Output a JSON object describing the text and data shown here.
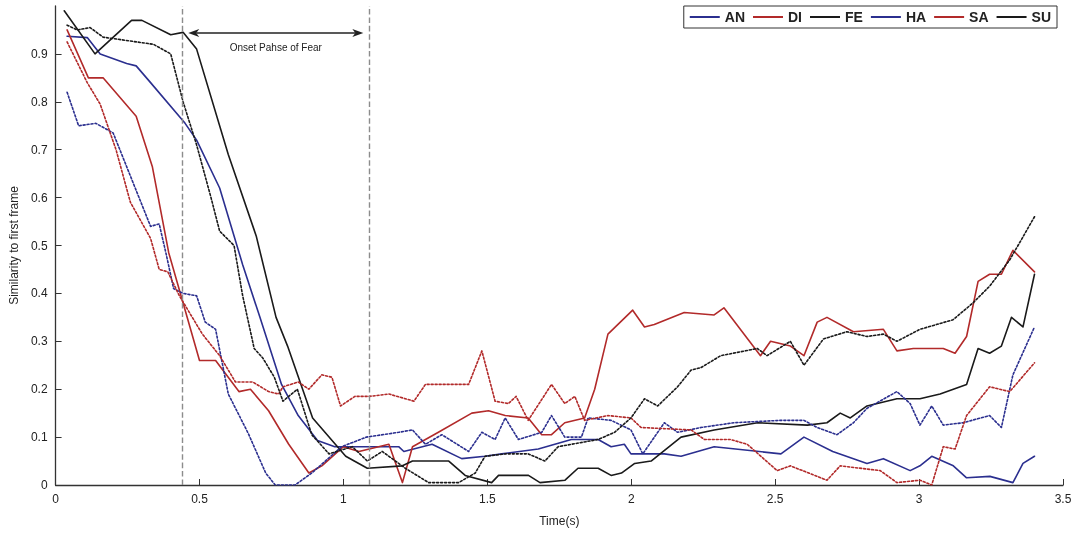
{
  "chart_data": {
    "type": "line",
    "xlabel": "Time(s)",
    "ylabel": "Similarity to first frame",
    "xlim": [
      0,
      3.5
    ],
    "xticks": [
      0,
      0.5,
      1,
      1.5,
      2,
      2.5,
      3,
      3.5
    ],
    "ylim": [
      0,
      1
    ],
    "yticks": [
      0,
      0.1,
      0.2,
      0.3,
      0.4,
      0.5,
      0.6,
      0.7,
      0.8,
      0.9
    ],
    "grid": false,
    "legend": "top right",
    "marker": "none",
    "ref_lines": [
      {
        "axis": "x",
        "value": 0.44,
        "color": "#8c8c8c",
        "line_style": "dashed"
      },
      {
        "axis": "x",
        "value": 1.09,
        "color": "#8c8c8c",
        "line_style": "dashed"
      }
    ],
    "annotations": [
      "Onset Pahse of Fear"
    ],
    "series": [
      {
        "name": "AN",
        "color": "#2b2f8f",
        "line_style": "solid",
        "x": [
          0.04,
          0.11,
          0.155,
          0.247,
          0.28,
          0.33,
          0.45,
          0.49,
          0.57,
          0.65,
          0.71,
          0.785,
          0.843,
          0.91,
          0.97,
          1.031,
          1.192,
          1.21,
          1.308,
          1.411,
          1.492,
          1.55,
          1.677,
          1.792,
          1.885,
          1.93,
          1.976,
          1.999,
          2.115,
          2.173,
          2.288,
          2.52,
          2.6,
          2.7,
          2.819,
          2.876,
          2.969,
          3.003,
          3.044,
          3.119,
          3.165,
          3.246,
          3.326,
          3.361,
          3.401
        ],
        "values": [
          0.937,
          0.934,
          0.9,
          0.88,
          0.875,
          0.84,
          0.755,
          0.72,
          0.62,
          0.46,
          0.35,
          0.21,
          0.145,
          0.093,
          0.08,
          0.08,
          0.08,
          0.07,
          0.085,
          0.055,
          0.06,
          0.065,
          0.075,
          0.095,
          0.095,
          0.08,
          0.085,
          0.065,
          0.065,
          0.06,
          0.08,
          0.065,
          0.1,
          0.07,
          0.045,
          0.055,
          0.03,
          0.04,
          0.06,
          0.04,
          0.015,
          0.018,
          0.005,
          0.045,
          0.06
        ]
      },
      {
        "name": "DI",
        "color": "#b22a2a",
        "line_style": "solid",
        "x": [
          0.04,
          0.114,
          0.165,
          0.28,
          0.336,
          0.393,
          0.443,
          0.5,
          0.556,
          0.637,
          0.677,
          0.74,
          0.81,
          0.88,
          0.925,
          1.0,
          1.054,
          1.158,
          1.205,
          1.24,
          1.33,
          1.446,
          1.504,
          1.562,
          1.642,
          1.689,
          1.723,
          1.769,
          1.838,
          1.873,
          1.919,
          2.005,
          2.046,
          2.08,
          2.184,
          2.288,
          2.322,
          2.449,
          2.484,
          2.553,
          2.6,
          2.646,
          2.68,
          2.772,
          2.876,
          2.923,
          2.98,
          3.084,
          3.125,
          3.165,
          3.205,
          3.245,
          3.286,
          3.326,
          3.401
        ],
        "values": [
          0.95,
          0.85,
          0.85,
          0.77,
          0.665,
          0.485,
          0.38,
          0.26,
          0.26,
          0.195,
          0.2,
          0.155,
          0.085,
          0.025,
          0.04,
          0.08,
          0.07,
          0.085,
          0.005,
          0.08,
          0.11,
          0.15,
          0.155,
          0.145,
          0.14,
          0.105,
          0.105,
          0.13,
          0.14,
          0.2,
          0.315,
          0.365,
          0.33,
          0.335,
          0.36,
          0.355,
          0.37,
          0.27,
          0.3,
          0.29,
          0.27,
          0.34,
          0.35,
          0.32,
          0.325,
          0.28,
          0.285,
          0.285,
          0.275,
          0.31,
          0.425,
          0.44,
          0.44,
          0.49,
          0.445
        ]
      },
      {
        "name": "FE",
        "color": "#1a1a1a",
        "line_style": "solid",
        "x": [
          0.03,
          0.137,
          0.264,
          0.3,
          0.4,
          0.443,
          0.49,
          0.6,
          0.697,
          0.766,
          0.806,
          0.893,
          1.008,
          1.083,
          1.205,
          1.24,
          1.366,
          1.423,
          1.515,
          1.539,
          1.643,
          1.683,
          1.77,
          1.815,
          1.885,
          1.93,
          1.966,
          2.012,
          2.069,
          2.173,
          2.288,
          2.439,
          2.612,
          2.68,
          2.726,
          2.761,
          2.819,
          2.923,
          3.003,
          3.073,
          3.165,
          3.205,
          3.245,
          3.286,
          3.321,
          3.361,
          3.401
        ],
        "values": [
          0.99,
          0.9,
          0.97,
          0.97,
          0.94,
          0.945,
          0.91,
          0.69,
          0.52,
          0.35,
          0.29,
          0.14,
          0.06,
          0.035,
          0.04,
          0.05,
          0.05,
          0.02,
          0.005,
          0.02,
          0.02,
          0.005,
          0.01,
          0.035,
          0.035,
          0.02,
          0.025,
          0.045,
          0.05,
          0.1,
          0.115,
          0.13,
          0.125,
          0.13,
          0.15,
          0.14,
          0.165,
          0.18,
          0.18,
          0.19,
          0.21,
          0.285,
          0.275,
          0.29,
          0.35,
          0.33,
          0.44
        ]
      },
      {
        "name": "HA",
        "color": "#2b2f8f",
        "line_style": "dotted",
        "x": [
          0.04,
          0.08,
          0.14,
          0.2,
          0.28,
          0.33,
          0.36,
          0.385,
          0.41,
          0.443,
          0.49,
          0.52,
          0.556,
          0.6,
          0.67,
          0.73,
          0.763,
          0.832,
          0.89,
          0.994,
          1.08,
          1.192,
          1.24,
          1.285,
          1.342,
          1.435,
          1.481,
          1.527,
          1.562,
          1.608,
          1.689,
          1.723,
          1.769,
          1.827,
          1.85,
          1.93,
          1.999,
          2.04,
          2.115,
          2.161,
          2.242,
          2.357,
          2.519,
          2.6,
          2.646,
          2.715,
          2.772,
          2.819,
          2.923,
          2.969,
          3.003,
          3.044,
          3.084,
          3.153,
          3.245,
          3.286,
          3.326,
          3.401
        ],
        "values": [
          0.82,
          0.75,
          0.755,
          0.735,
          0.615,
          0.54,
          0.545,
          0.48,
          0.41,
          0.4,
          0.395,
          0.34,
          0.325,
          0.19,
          0.107,
          0.025,
          0,
          0,
          0.025,
          0.08,
          0.1,
          0.11,
          0.115,
          0.085,
          0.105,
          0.07,
          0.11,
          0.095,
          0.14,
          0.095,
          0.11,
          0.145,
          0.1,
          0.1,
          0.14,
          0.135,
          0.115,
          0.065,
          0.13,
          0.11,
          0.12,
          0.13,
          0.135,
          0.135,
          0.12,
          0.105,
          0.13,
          0.16,
          0.195,
          0.17,
          0.125,
          0.165,
          0.125,
          0.13,
          0.145,
          0.12,
          0.23,
          0.33
        ]
      },
      {
        "name": "SA",
        "color": "#b22a2a",
        "line_style": "dotted",
        "x": [
          0.04,
          0.11,
          0.155,
          0.21,
          0.26,
          0.33,
          0.36,
          0.39,
          0.43,
          0.51,
          0.57,
          0.625,
          0.685,
          0.74,
          0.775,
          0.79,
          0.843,
          0.88,
          0.925,
          0.96,
          0.99,
          1.04,
          1.09,
          1.158,
          1.245,
          1.285,
          1.435,
          1.481,
          1.527,
          1.573,
          1.6,
          1.642,
          1.723,
          1.769,
          1.804,
          1.838,
          1.919,
          1.999,
          2.034,
          2.208,
          2.254,
          2.345,
          2.403,
          2.507,
          2.553,
          2.68,
          2.726,
          2.865,
          2.923,
          3.003,
          3.044,
          3.084,
          3.125,
          3.165,
          3.245,
          3.315,
          3.401
        ],
        "values": [
          0.925,
          0.84,
          0.795,
          0.7,
          0.59,
          0.515,
          0.45,
          0.445,
          0.395,
          0.315,
          0.27,
          0.215,
          0.215,
          0.195,
          0.19,
          0.205,
          0.215,
          0.2,
          0.23,
          0.225,
          0.165,
          0.185,
          0.185,
          0.19,
          0.175,
          0.21,
          0.21,
          0.28,
          0.175,
          0.17,
          0.185,
          0.135,
          0.21,
          0.17,
          0.185,
          0.135,
          0.145,
          0.14,
          0.12,
          0.115,
          0.095,
          0.095,
          0.085,
          0.03,
          0.04,
          0.01,
          0.04,
          0.03,
          0.005,
          0.01,
          0,
          0.08,
          0.075,
          0.145,
          0.205,
          0.195,
          0.255
        ]
      },
      {
        "name": "SU",
        "color": "#1a1a1a",
        "line_style": "dotted",
        "x": [
          0.04,
          0.075,
          0.12,
          0.165,
          0.34,
          0.4,
          0.443,
          0.49,
          0.54,
          0.57,
          0.62,
          0.65,
          0.69,
          0.72,
          0.76,
          0.79,
          0.84,
          0.89,
          0.95,
          1.031,
          1.083,
          1.135,
          1.215,
          1.296,
          1.4,
          1.458,
          1.492,
          1.562,
          1.642,
          1.7,
          1.746,
          1.885,
          1.942,
          1.999,
          2.046,
          2.092,
          2.161,
          2.208,
          2.242,
          2.311,
          2.438,
          2.472,
          2.553,
          2.6,
          2.668,
          2.749,
          2.819,
          2.876,
          2.923,
          3.003,
          3.118,
          3.187,
          3.245,
          3.315,
          3.401
        ],
        "values": [
          0.96,
          0.95,
          0.955,
          0.935,
          0.92,
          0.9,
          0.8,
          0.71,
          0.6,
          0.53,
          0.5,
          0.395,
          0.285,
          0.265,
          0.225,
          0.175,
          0.2,
          0.105,
          0.065,
          0.08,
          0.05,
          0.07,
          0.035,
          0.005,
          0.005,
          0.025,
          0.06,
          0.065,
          0.065,
          0.05,
          0.08,
          0.095,
          0.11,
          0.14,
          0.18,
          0.165,
          0.205,
          0.24,
          0.245,
          0.27,
          0.285,
          0.27,
          0.3,
          0.25,
          0.305,
          0.32,
          0.31,
          0.315,
          0.3,
          0.325,
          0.345,
          0.38,
          0.415,
          0.47,
          0.56
        ]
      }
    ]
  }
}
